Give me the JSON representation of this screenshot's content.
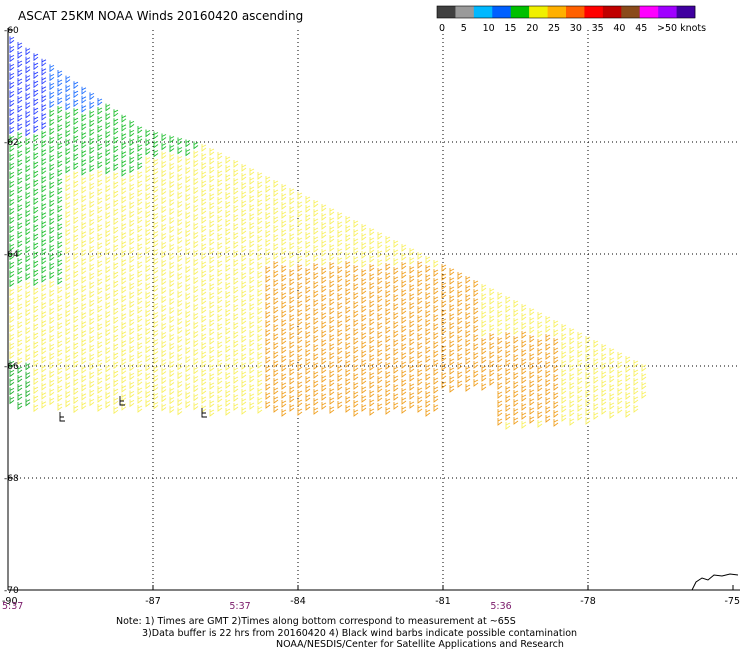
{
  "title": "ASCAT 25KM NOAA Winds 20160420 ascending",
  "legend": {
    "labels": [
      "0",
      "5",
      "10",
      "15",
      "20",
      "25",
      "30",
      "35",
      "40",
      "45",
      ">50 knots"
    ],
    "colors": [
      "#404040",
      "#9a9a9a",
      "#00b8ff",
      "#0060ff",
      "#00c000",
      "#f0f000",
      "#ffb000",
      "#ff6000",
      "#ff0000",
      "#c00000",
      "#8a4a1a",
      "#ff00ff",
      "#a000ff",
      "#4000a0"
    ]
  },
  "map": {
    "lon_range": [
      -90,
      -75
    ],
    "lat_range": [
      -70,
      -60
    ],
    "lon_ticks": [
      "-90",
      "-87",
      "-84",
      "-81",
      "-78",
      "-75"
    ],
    "lat_ticks": [
      "-60",
      "-62",
      "-64",
      "-66",
      "-68",
      "-70"
    ],
    "time_labels": [
      {
        "lon": -90,
        "text": "5:37"
      },
      {
        "lon": -85.2,
        "text": "5:37"
      },
      {
        "lon": -79.8,
        "text": "5:36"
      }
    ]
  },
  "notes": {
    "line1": "Note: 1) Times are GMT 2)Times along bottom correspond to measurement at ~65S",
    "line2": "3)Data buffer is 22 hrs from 20160420 4) Black wind barbs indicate possible contamination",
    "line3": "NOAA/NESDIS/Center for Satellite Applications and Research"
  }
}
